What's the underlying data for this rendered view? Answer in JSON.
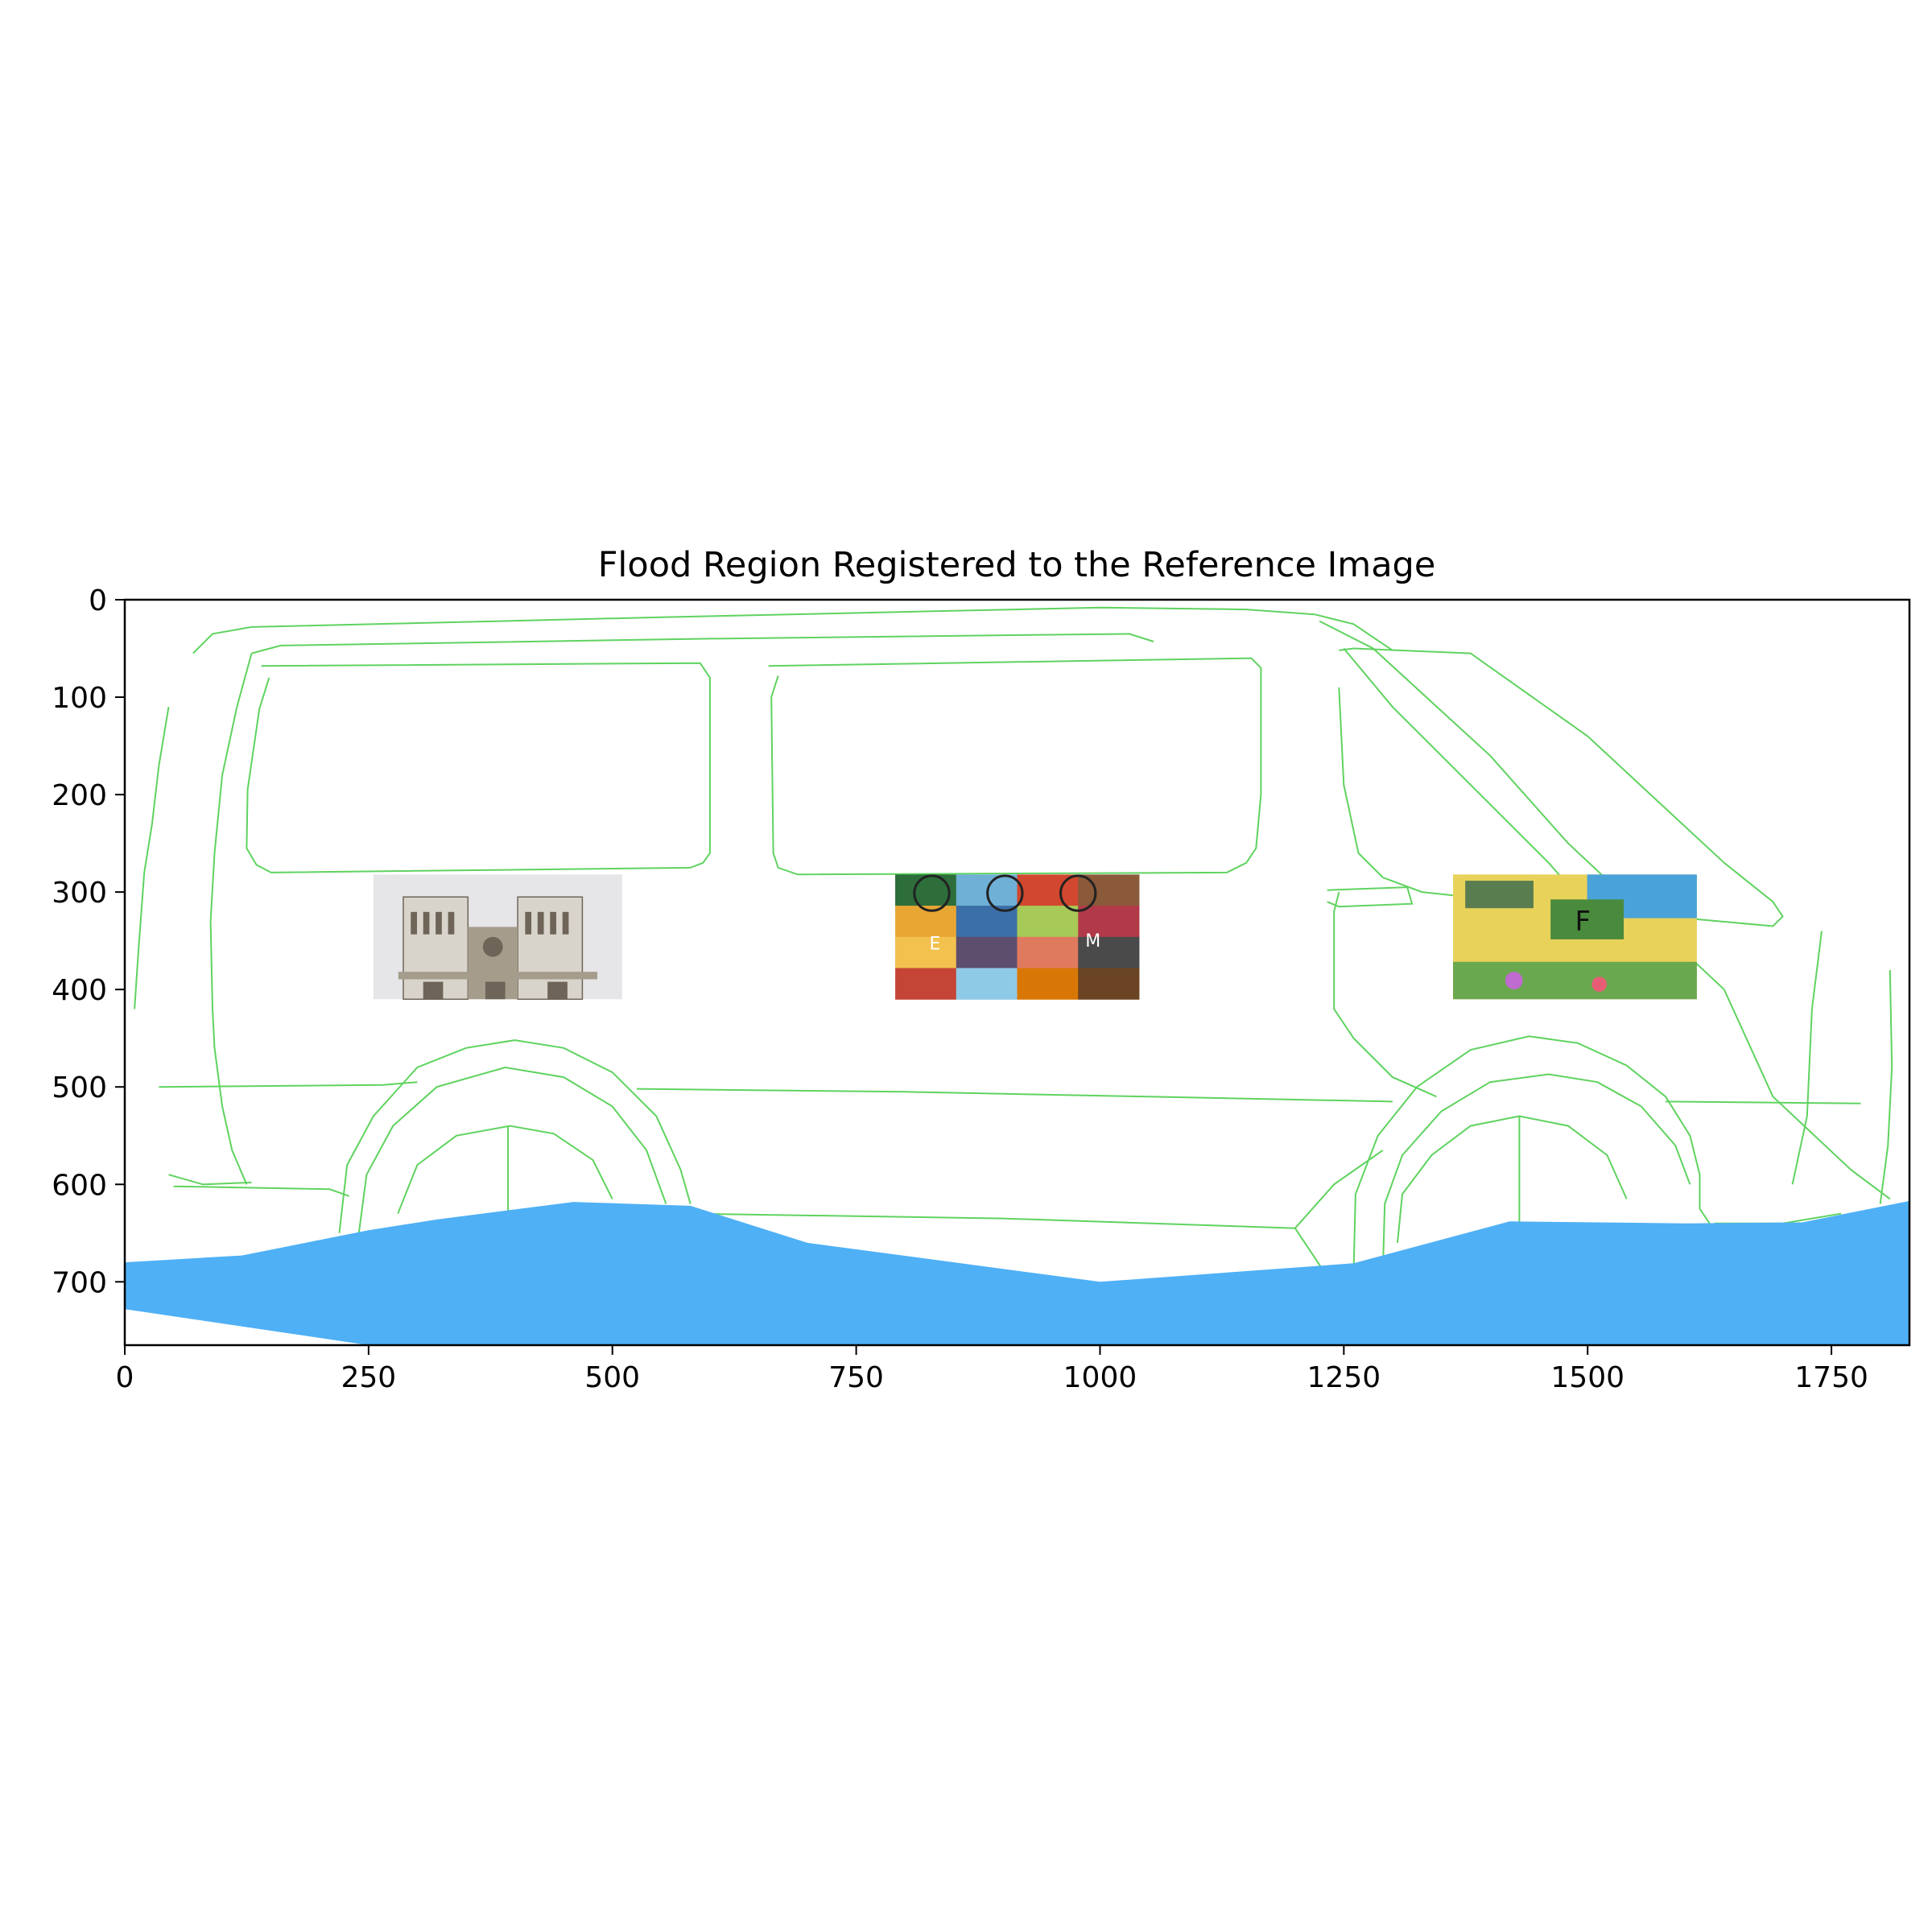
{
  "chart_data": {
    "type": "image",
    "title": "Flood Region Registered to the Reference Image",
    "xlabel": "",
    "ylabel": "",
    "xlim": [
      0,
      1830
    ],
    "ylim": [
      765,
      0
    ],
    "x_ticks": [
      0,
      250,
      500,
      750,
      1000,
      1250,
      1500,
      1750
    ],
    "y_ticks": [
      0,
      100,
      200,
      300,
      400,
      500,
      600,
      700
    ],
    "colors": {
      "flood": "#4fb0f5",
      "edges": "#5fd35f"
    },
    "flood_region": {
      "top_boundary": [
        [
          0,
          680
        ],
        [
          120,
          673
        ],
        [
          250,
          647
        ],
        [
          320,
          636
        ],
        [
          460,
          618
        ],
        [
          580,
          622
        ],
        [
          700,
          660
        ],
        [
          1000,
          700
        ],
        [
          1260,
          681
        ],
        [
          1420,
          638
        ],
        [
          1600,
          640
        ],
        [
          1720,
          639
        ],
        [
          1830,
          617
        ]
      ],
      "bottom_boundary": [
        [
          0,
          728
        ],
        [
          250,
          765
        ],
        [
          1830,
          765
        ]
      ]
    },
    "inset_images": [
      {
        "name": "cathedral-photo",
        "x": [
          255,
          510
        ],
        "y": [
          282,
          410
        ],
        "palette": [
          "#d8d4cc",
          "#a59c8c",
          "#6e6558"
        ]
      },
      {
        "name": "collage-photo",
        "x": [
          790,
          1040
        ],
        "y": [
          282,
          410
        ],
        "letters": [
          "E",
          "M"
        ],
        "palette": [
          "#2d6e3b",
          "#d2472f",
          "#e8a632",
          "#3b6fa8"
        ]
      },
      {
        "name": "colorful-photo",
        "x": [
          1362,
          1612
        ],
        "y": [
          282,
          410
        ],
        "letters": [
          "F"
        ],
        "palette": [
          "#e9d25a",
          "#6aa84f",
          "#4aa3d8",
          "#c06bd0"
        ]
      }
    ],
    "outline_paths": [
      {
        "name": "roof-outer",
        "points": [
          [
            70,
            55
          ],
          [
            90,
            35
          ],
          [
            130,
            28
          ],
          [
            550,
            18
          ],
          [
            1000,
            8
          ],
          [
            1150,
            10
          ],
          [
            1220,
            15
          ],
          [
            1260,
            25
          ],
          [
            1300,
            52
          ]
        ]
      },
      {
        "name": "roof-inner",
        "points": [
          [
            130,
            55
          ],
          [
            160,
            47
          ],
          [
            600,
            40
          ],
          [
            1030,
            35
          ],
          [
            1055,
            43
          ]
        ]
      },
      {
        "name": "front-slope-outer",
        "points": [
          [
            1225,
            22
          ],
          [
            1280,
            50
          ],
          [
            1400,
            160
          ],
          [
            1480,
            250
          ],
          [
            1640,
            400
          ],
          [
            1690,
            510
          ],
          [
            1770,
            585
          ],
          [
            1810,
            615
          ]
        ]
      },
      {
        "name": "front-slope-inner",
        "points": [
          [
            1250,
            50
          ],
          [
            1300,
            110
          ],
          [
            1400,
            210
          ],
          [
            1460,
            270
          ],
          [
            1530,
            350
          ]
        ]
      },
      {
        "name": "rear-edge",
        "points": [
          [
            45,
            110
          ],
          [
            35,
            170
          ],
          [
            28,
            230
          ],
          [
            20,
            280
          ],
          [
            14,
            360
          ],
          [
            10,
            420
          ]
        ]
      },
      {
        "name": "rear-panel",
        "points": [
          [
            130,
            55
          ],
          [
            115,
            110
          ],
          [
            100,
            180
          ],
          [
            92,
            260
          ],
          [
            88,
            330
          ],
          [
            90,
            420
          ],
          [
            92,
            460
          ],
          [
            100,
            520
          ],
          [
            110,
            565
          ],
          [
            125,
            600
          ]
        ]
      },
      {
        "name": "window-1",
        "points": [
          [
            140,
            68
          ],
          [
            590,
            65
          ],
          [
            600,
            80
          ],
          [
            600,
            260
          ],
          [
            593,
            270
          ],
          [
            580,
            275
          ],
          [
            150,
            280
          ],
          [
            135,
            272
          ],
          [
            125,
            255
          ],
          [
            126,
            195
          ],
          [
            138,
            112
          ],
          [
            148,
            80
          ]
        ]
      },
      {
        "name": "window-2",
        "points": [
          [
            660,
            68
          ],
          [
            1155,
            60
          ],
          [
            1165,
            70
          ],
          [
            1165,
            200
          ],
          [
            1160,
            255
          ],
          [
            1150,
            270
          ],
          [
            1130,
            280
          ],
          [
            690,
            282
          ],
          [
            670,
            275
          ],
          [
            665,
            260
          ],
          [
            663,
            100
          ],
          [
            670,
            78
          ]
        ]
      },
      {
        "name": "window-3",
        "points": [
          [
            1245,
            52
          ],
          [
            1260,
            50
          ],
          [
            1380,
            55
          ],
          [
            1500,
            140
          ],
          [
            1640,
            270
          ],
          [
            1690,
            310
          ],
          [
            1700,
            325
          ],
          [
            1690,
            335
          ],
          [
            1470,
            315
          ],
          [
            1330,
            300
          ],
          [
            1290,
            285
          ],
          [
            1265,
            260
          ],
          [
            1250,
            190
          ],
          [
            1245,
            90
          ]
        ]
      },
      {
        "name": "door-handle",
        "points": [
          [
            1233,
            298
          ],
          [
            1315,
            295
          ],
          [
            1320,
            312
          ],
          [
            1245,
            315
          ],
          [
            1233,
            310
          ]
        ]
      },
      {
        "name": "door-edge",
        "points": [
          [
            1245,
            300
          ],
          [
            1240,
            320
          ],
          [
            1240,
            420
          ],
          [
            1260,
            450
          ],
          [
            1300,
            490
          ],
          [
            1345,
            510
          ]
        ]
      },
      {
        "name": "belt-line",
        "points": [
          [
            35,
            500
          ],
          [
            265,
            498
          ],
          [
            300,
            495
          ]
        ]
      },
      {
        "name": "belt-line-2",
        "points": [
          [
            525,
            502
          ],
          [
            800,
            505
          ],
          [
            1050,
            510
          ],
          [
            1300,
            515
          ]
        ]
      },
      {
        "name": "belt-line-3",
        "points": [
          [
            1580,
            515
          ],
          [
            1780,
            517
          ]
        ]
      },
      {
        "name": "rear-wheel-arch-outer",
        "points": [
          [
            220,
            650
          ],
          [
            228,
            580
          ],
          [
            255,
            530
          ],
          [
            300,
            480
          ],
          [
            350,
            460
          ],
          [
            400,
            452
          ],
          [
            450,
            460
          ],
          [
            500,
            485
          ],
          [
            545,
            530
          ],
          [
            570,
            585
          ],
          [
            580,
            620
          ]
        ]
      },
      {
        "name": "rear-wheel-arch-inner",
        "points": [
          [
            240,
            650
          ],
          [
            248,
            590
          ],
          [
            275,
            540
          ],
          [
            320,
            500
          ],
          [
            390,
            480
          ],
          [
            450,
            490
          ],
          [
            500,
            520
          ],
          [
            535,
            565
          ],
          [
            555,
            620
          ]
        ]
      },
      {
        "name": "rear-wheel",
        "points": [
          [
            280,
            630
          ],
          [
            300,
            580
          ],
          [
            340,
            550
          ],
          [
            395,
            540
          ],
          [
            440,
            548
          ],
          [
            480,
            575
          ],
          [
            500,
            615
          ]
        ]
      },
      {
        "name": "rear-wheel-spoke",
        "points": [
          [
            393,
            540
          ],
          [
            393,
            630
          ]
        ]
      },
      {
        "name": "front-wheel-arch-outer",
        "points": [
          [
            1260,
            690
          ],
          [
            1262,
            610
          ],
          [
            1285,
            550
          ],
          [
            1325,
            500
          ],
          [
            1380,
            462
          ],
          [
            1440,
            448
          ],
          [
            1490,
            455
          ],
          [
            1540,
            478
          ],
          [
            1580,
            510
          ],
          [
            1605,
            550
          ],
          [
            1615,
            590
          ],
          [
            1615,
            625
          ],
          [
            1625,
            640
          ]
        ]
      },
      {
        "name": "front-wheel-arch-inner",
        "points": [
          [
            1290,
            690
          ],
          [
            1292,
            620
          ],
          [
            1310,
            570
          ],
          [
            1350,
            525
          ],
          [
            1400,
            495
          ],
          [
            1460,
            487
          ],
          [
            1510,
            495
          ],
          [
            1555,
            520
          ],
          [
            1590,
            560
          ],
          [
            1605,
            600
          ]
        ]
      },
      {
        "name": "front-wheel",
        "points": [
          [
            1305,
            660
          ],
          [
            1310,
            610
          ],
          [
            1340,
            570
          ],
          [
            1380,
            540
          ],
          [
            1430,
            530
          ],
          [
            1480,
            540
          ],
          [
            1520,
            570
          ],
          [
            1540,
            615
          ]
        ]
      },
      {
        "name": "front-wheel-spoke",
        "points": [
          [
            1430,
            530
          ],
          [
            1430,
            640
          ]
        ]
      },
      {
        "name": "rocker-rear",
        "points": [
          [
            50,
            602
          ],
          [
            210,
            605
          ],
          [
            230,
            612
          ]
        ]
      },
      {
        "name": "rocker-mid",
        "points": [
          [
            580,
            630
          ],
          [
            900,
            635
          ],
          [
            1200,
            645
          ]
        ]
      },
      {
        "name": "bumper-front",
        "points": [
          [
            1200,
            645
          ],
          [
            1230,
            690
          ]
        ]
      },
      {
        "name": "rocker-lower",
        "points": [
          [
            1200,
            645
          ],
          [
            1240,
            600
          ],
          [
            1290,
            565
          ]
        ]
      },
      {
        "name": "front-bumper",
        "points": [
          [
            1630,
            640
          ],
          [
            1700,
            640
          ],
          [
            1760,
            630
          ]
        ]
      },
      {
        "name": "front-pillar",
        "points": [
          [
            1740,
            340
          ],
          [
            1730,
            420
          ],
          [
            1725,
            530
          ],
          [
            1710,
            600
          ]
        ]
      },
      {
        "name": "front-face",
        "points": [
          [
            1810,
            380
          ],
          [
            1812,
            480
          ],
          [
            1808,
            560
          ],
          [
            1800,
            620
          ]
        ]
      },
      {
        "name": "rear-bumper",
        "points": [
          [
            45,
            590
          ],
          [
            80,
            600
          ],
          [
            130,
            598
          ]
        ]
      }
    ]
  }
}
